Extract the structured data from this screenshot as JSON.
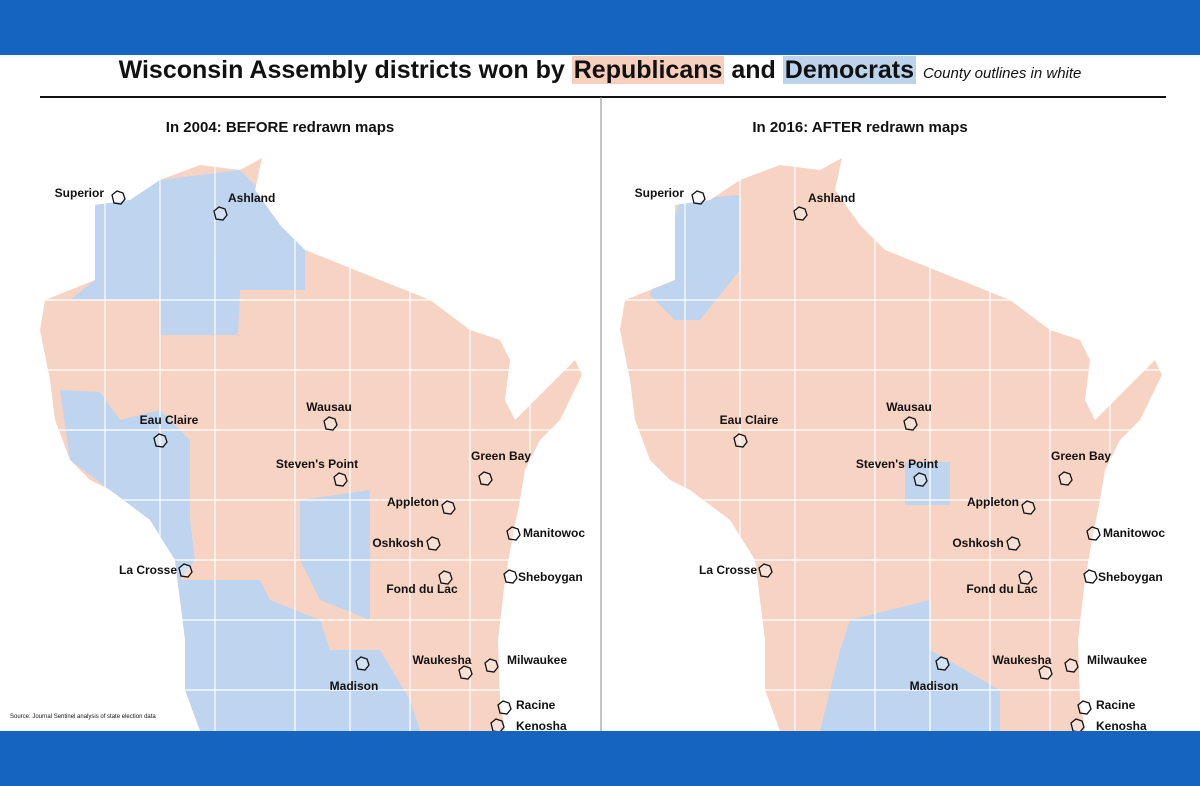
{
  "header": {
    "title_start": "Wisconsin Assembly districts won by",
    "republicans": "Republicans",
    "middle": "and",
    "democrats": "Democrats",
    "subtitle": "County outlines in white"
  },
  "panels": [
    {
      "title": "In 2004: BEFORE redrawn maps"
    },
    {
      "title": "In 2016: AFTER redrawn maps"
    }
  ],
  "cities": [
    "Superior",
    "Ashland",
    "Eau Claire",
    "Wausau",
    "Steven's Point",
    "Green Bay",
    "Appleton",
    "Manitowoc",
    "Oshkosh",
    "La Crosse",
    "Sheboygan",
    "Fond du Lac",
    "Waukesha",
    "Milwaukee",
    "Madison",
    "Racine",
    "Kenosha"
  ],
  "source": "Source: Journal Sentinel analysis of state election data"
}
